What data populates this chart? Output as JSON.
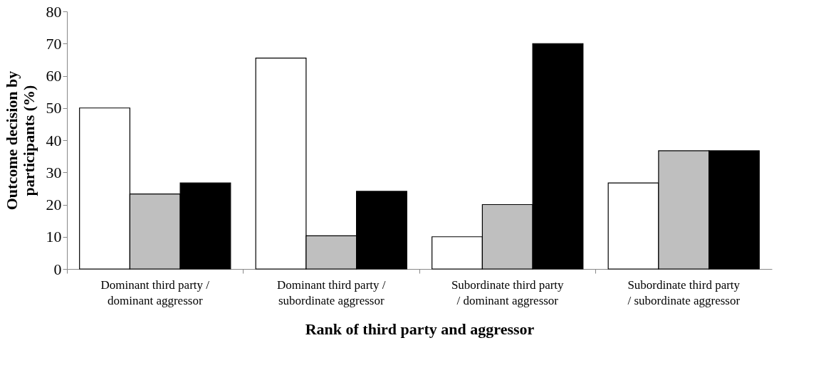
{
  "chart_data": {
    "type": "bar",
    "xlabel": "Rank of third party and aggressor",
    "ylabel": "Outcome decision by participants (%)",
    "categories": [
      "Dominant third party / dominant aggressor",
      "Dominant third party / subordinate aggressor",
      "Subordinate third party / dominant aggressor",
      "Subordinate third party / subordinate aggressor"
    ],
    "series": [
      {
        "color": "#ffffff",
        "values": [
          50,
          65.5,
          10,
          26.7
        ]
      },
      {
        "color": "#bfbfbf",
        "values": [
          23.3,
          10.3,
          20,
          36.7
        ]
      },
      {
        "color": "#000000",
        "values": [
          26.7,
          24.1,
          70,
          36.7
        ]
      }
    ],
    "ylim": [
      0,
      80
    ],
    "yticks": [
      0,
      10,
      20,
      30,
      40,
      50,
      60,
      70,
      80
    ],
    "grid": false,
    "legend": false
  }
}
